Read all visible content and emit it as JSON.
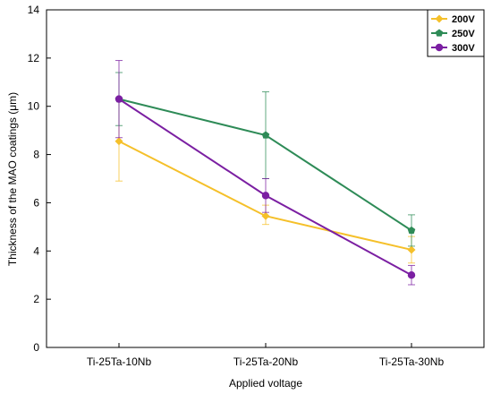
{
  "chart_data": {
    "type": "line",
    "xlabel": "Applied voltage",
    "ylabel": "Thickness of the MAO coatings (μm)",
    "categories": [
      "Ti-25Ta-10Nb",
      "Ti-25Ta-20Nb",
      "Ti-25Ta-30Nb"
    ],
    "ylim": [
      0,
      14
    ],
    "yticks": [
      0,
      2,
      4,
      6,
      8,
      10,
      12,
      14
    ],
    "grid": false,
    "legend_position": "top-right",
    "series": [
      {
        "name": "200V",
        "color": "#f5c02a",
        "marker": "diamond",
        "values": [
          8.55,
          5.45,
          4.05
        ],
        "err_low": [
          6.9,
          5.1,
          3.5
        ],
        "err_high": [
          10.3,
          5.9,
          4.6
        ]
      },
      {
        "name": "250V",
        "color": "#2e8b57",
        "marker": "pentagon",
        "values": [
          10.3,
          8.8,
          4.85
        ],
        "err_low": [
          9.2,
          7.0,
          4.2
        ],
        "err_high": [
          11.4,
          10.6,
          5.5
        ]
      },
      {
        "name": "300V",
        "color": "#7b1fa2",
        "marker": "circle",
        "values": [
          10.3,
          6.3,
          3.0
        ],
        "err_low": [
          8.7,
          5.6,
          2.6
        ],
        "err_high": [
          11.9,
          7.0,
          3.4
        ]
      }
    ]
  }
}
